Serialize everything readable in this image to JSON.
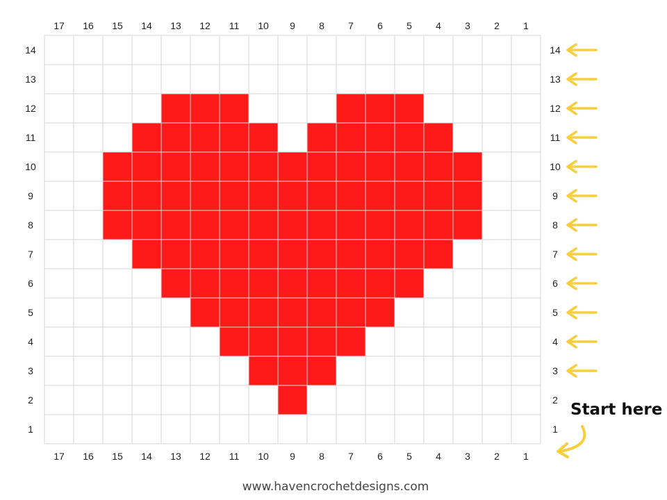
{
  "grid": {
    "columns": 17,
    "rows": 14,
    "column_labels": [
      "17",
      "16",
      "15",
      "14",
      "13",
      "12",
      "11",
      "10",
      "9",
      "8",
      "7",
      "6",
      "5",
      "4",
      "3",
      "2",
      "1"
    ],
    "row_labels": [
      "14",
      "13",
      "12",
      "11",
      "10",
      "9",
      "8",
      "7",
      "6",
      "5",
      "4",
      "3",
      "2",
      "1"
    ],
    "filled_color": "#ff1a1a",
    "empty_color": "#ffffff",
    "line_color": "#d6d6d6",
    "filled_cells": [
      {
        "row": 2,
        "cols": [
          9
        ]
      },
      {
        "row": 3,
        "cols": [
          8,
          9,
          10
        ]
      },
      {
        "row": 4,
        "cols": [
          7,
          8,
          9,
          10,
          11
        ]
      },
      {
        "row": 5,
        "cols": [
          6,
          7,
          8,
          9,
          10,
          11,
          12
        ]
      },
      {
        "row": 6,
        "cols": [
          5,
          6,
          7,
          8,
          9,
          10,
          11,
          12,
          13
        ]
      },
      {
        "row": 7,
        "cols": [
          4,
          5,
          6,
          7,
          8,
          9,
          10,
          11,
          12,
          13,
          14
        ]
      },
      {
        "row": 8,
        "cols": [
          3,
          4,
          5,
          6,
          7,
          8,
          9,
          10,
          11,
          12,
          13,
          14,
          15
        ]
      },
      {
        "row": 9,
        "cols": [
          3,
          4,
          5,
          6,
          7,
          8,
          9,
          10,
          11,
          12,
          13,
          14,
          15
        ]
      },
      {
        "row": 10,
        "cols": [
          3,
          4,
          5,
          6,
          7,
          8,
          9,
          10,
          11,
          12,
          13,
          14,
          15
        ]
      },
      {
        "row": 11,
        "cols": [
          4,
          5,
          6,
          7,
          8,
          10,
          11,
          12,
          13,
          14
        ]
      },
      {
        "row": 12,
        "cols": [
          5,
          6,
          7,
          11,
          12,
          13
        ]
      }
    ]
  },
  "row_arrows": {
    "rows": [
      "14",
      "13",
      "12",
      "11",
      "10",
      "9",
      "8",
      "7",
      "6",
      "5",
      "4",
      "3"
    ],
    "icon": "arrow-left-icon",
    "color": "#f7cf3e"
  },
  "start": {
    "label": "Start here",
    "icon": "curved-arrow-icon",
    "color": "#f7cf3e"
  },
  "footer": {
    "website": "www.havencrochetdesigns.com"
  }
}
